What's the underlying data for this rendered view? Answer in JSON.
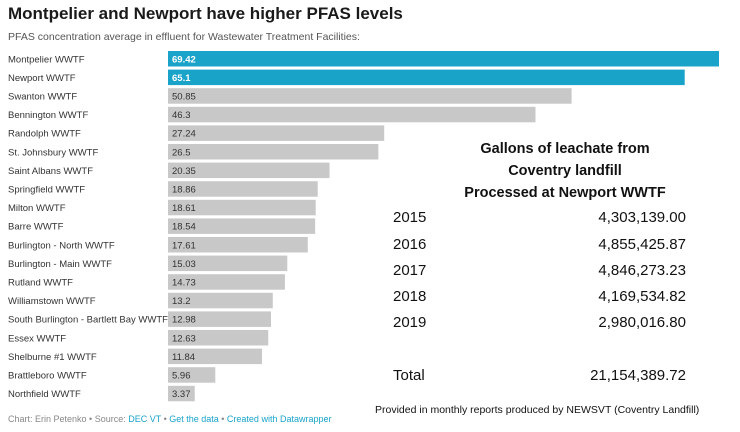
{
  "chart_data": {
    "type": "bar",
    "orientation": "horizontal",
    "title": "Montpelier and Newport have higher PFAS levels",
    "subtitle": "PFAS concentration average in effluent for Wastewater Treatment Facilities:",
    "categories": [
      "Montpelier WWTF",
      "Newport WWTF",
      "Swanton WWTF",
      "Bennington WWTF",
      "Randolph WWTF",
      "St. Johnsbury WWTF",
      "Saint Albans WWTF",
      "Springfield WWTF",
      "Milton WWTF",
      "Barre WWTF",
      "Burlington - North WWTF",
      "Burlington - Main WWTF",
      "Rutland WWTF",
      "Williamstown WWTF",
      "South Burlington - Bartlett Bay WWTF",
      "Essex WWTF",
      "Shelburne #1 WWTF",
      "Brattleboro WWTF",
      "Northfield WWTF"
    ],
    "values": [
      69.42,
      65.1,
      50.85,
      46.3,
      27.24,
      26.5,
      20.35,
      18.86,
      18.61,
      18.54,
      17.61,
      15.03,
      14.73,
      13.2,
      12.98,
      12.63,
      11.84,
      5.96,
      3.37
    ],
    "value_labels": [
      "69.42",
      "65.1",
      "50.85",
      "46.3",
      "27.24",
      "26.5",
      "20.35",
      "18.86",
      "18.61",
      "18.54",
      "17.61",
      "15.03",
      "14.73",
      "13.2",
      "12.98",
      "12.63",
      "11.84",
      "5.96",
      "3.37"
    ],
    "highlighted": [
      "Montpelier WWTF",
      "Newport WWTF"
    ],
    "xlim": [
      0,
      69.42
    ],
    "grid": false,
    "colors": {
      "highlight": "#1aa3c9",
      "default": "#c8c8c8"
    }
  },
  "footer": {
    "prefix": "Chart: Erin Petenko • Source: ",
    "source_link": "DEC VT",
    "sep1": " • ",
    "data_link": "Get the data",
    "sep2": " • ",
    "made_with": "Created with Datawrapper"
  },
  "leachate_table": {
    "title_lines": [
      "Gallons of leachate from",
      "Coventry landfill",
      "Processed at Newport WWTF"
    ],
    "rows": [
      {
        "year": "2015",
        "gallons": "4,303,139.00"
      },
      {
        "year": "2016",
        "gallons": "4,855,425.87"
      },
      {
        "year": "2017",
        "gallons": "4,846,273.23"
      },
      {
        "year": "2018",
        "gallons": "4,169,534.82"
      },
      {
        "year": "2019",
        "gallons": "2,980,016.80"
      }
    ],
    "total_label": "Total",
    "total_value": "21,154,389.72",
    "note": "Provided in monthly reports produced by NEWSVT (Coventry Landfill)"
  }
}
